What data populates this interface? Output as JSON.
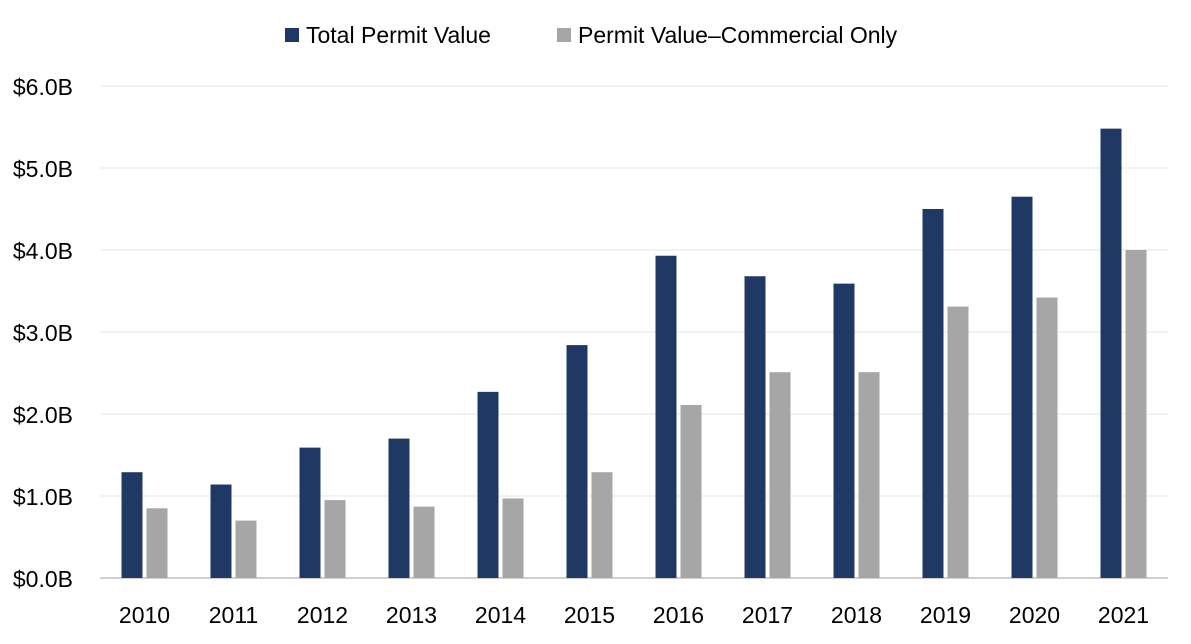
{
  "chart_data": {
    "type": "bar",
    "categories": [
      "2010",
      "2011",
      "2012",
      "2013",
      "2014",
      "2015",
      "2016",
      "2017",
      "2018",
      "2019",
      "2020",
      "2021"
    ],
    "series": [
      {
        "name": "Total Permit Value",
        "color": "#203864",
        "values": [
          1.29,
          1.14,
          1.59,
          1.7,
          2.27,
          2.84,
          3.93,
          3.68,
          3.59,
          4.5,
          4.65,
          5.48
        ]
      },
      {
        "name": "Permit Value–Commercial Only",
        "color": "#A6A6A6",
        "values": [
          0.85,
          0.7,
          0.95,
          0.87,
          0.97,
          1.29,
          2.11,
          2.51,
          2.51,
          3.31,
          3.42,
          4.0
        ]
      }
    ],
    "y_ticks": [
      "$0.0B",
      "$1.0B",
      "$2.0B",
      "$3.0B",
      "$4.0B",
      "$5.0B",
      "$6.0B"
    ],
    "ylim": [
      0,
      6
    ],
    "y_unit": "billions of dollars",
    "title": "",
    "xlabel": "",
    "ylabel": "",
    "grid": true,
    "legend_position": "top-center"
  }
}
